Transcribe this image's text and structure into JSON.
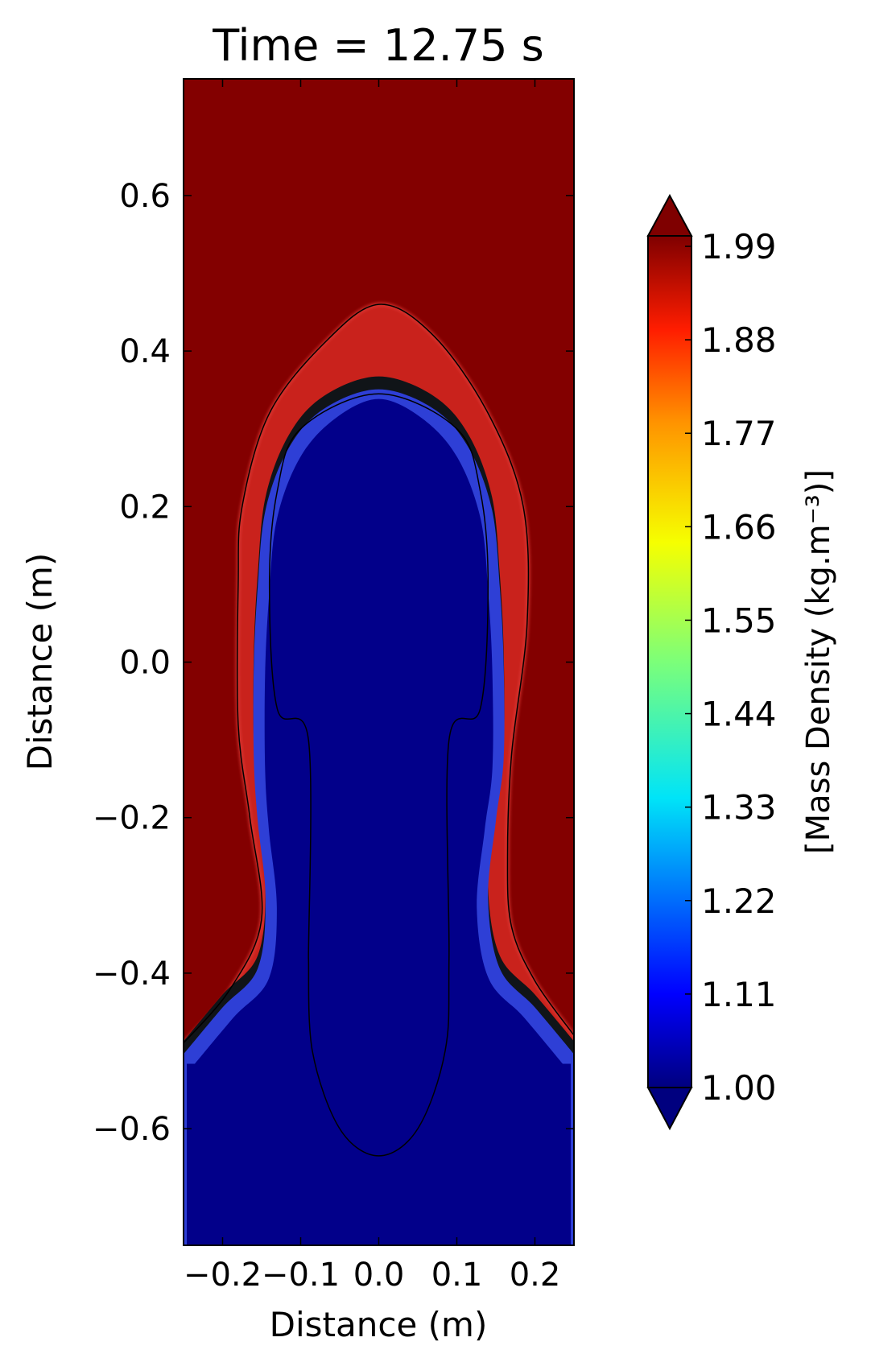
{
  "chart_data": {
    "type": "heatmap",
    "title": "Time = 12.75 s",
    "xlabel": "Distance (m)",
    "ylabel": "Distance (m)",
    "xlim": [
      -0.25,
      0.25
    ],
    "ylim": [
      -0.75,
      0.75
    ],
    "xticks": [
      -0.2,
      -0.1,
      0.0,
      0.1,
      0.2
    ],
    "xtick_labels": [
      "−0.2",
      "−0.1",
      "0.0",
      "0.1",
      "0.2"
    ],
    "yticks": [
      0.6,
      0.4,
      0.2,
      0.0,
      -0.2,
      -0.4,
      -0.6
    ],
    "ytick_labels": [
      "0.6",
      "0.4",
      "0.2",
      "0.0",
      "−0.2",
      "−0.4",
      "−0.6"
    ],
    "colorbar": {
      "label": "[Mass Density (kg.m⁻³)]",
      "min": 1.0,
      "max": 1.99,
      "colormap": "jet",
      "extend": "both",
      "ticks": [
        1.99,
        1.88,
        1.77,
        1.66,
        1.55,
        1.44,
        1.33,
        1.22,
        1.11,
        1.0
      ],
      "tick_labels": [
        "1.99",
        "1.88",
        "1.77",
        "1.66",
        "1.55",
        "1.44",
        "1.33",
        "1.22",
        "1.11",
        "1.00"
      ]
    },
    "field": {
      "background_high_value": 1.99,
      "low_value": 1.0,
      "interface_contour": [
        [
          -0.25,
          -0.5
        ],
        [
          -0.2,
          -0.44
        ],
        [
          -0.155,
          -0.39
        ],
        [
          -0.145,
          -0.3
        ],
        [
          -0.155,
          -0.2
        ],
        [
          -0.16,
          -0.12
        ],
        [
          -0.16,
          0.0
        ],
        [
          -0.155,
          0.1
        ],
        [
          -0.145,
          0.2
        ],
        [
          -0.115,
          0.28
        ],
        [
          -0.07,
          0.33
        ],
        [
          0.0,
          0.355
        ],
        [
          0.07,
          0.33
        ],
        [
          0.115,
          0.28
        ],
        [
          0.145,
          0.2
        ],
        [
          0.155,
          0.1
        ],
        [
          0.16,
          0.0
        ],
        [
          0.16,
          -0.12
        ],
        [
          0.15,
          -0.2
        ],
        [
          0.14,
          -0.3
        ],
        [
          0.155,
          -0.39
        ],
        [
          0.2,
          -0.44
        ],
        [
          0.25,
          -0.5
        ]
      ],
      "outer_contour": [
        [
          -0.25,
          -0.49
        ],
        [
          -0.19,
          -0.42
        ],
        [
          -0.15,
          -0.33
        ],
        [
          -0.165,
          -0.2
        ],
        [
          -0.18,
          -0.08
        ],
        [
          -0.18,
          0.1
        ],
        [
          -0.175,
          0.2
        ],
        [
          -0.14,
          0.32
        ],
        [
          -0.07,
          0.41
        ],
        [
          0.0,
          0.46
        ],
        [
          0.07,
          0.42
        ],
        [
          0.14,
          0.32
        ],
        [
          0.185,
          0.2
        ],
        [
          0.19,
          0.05
        ],
        [
          0.17,
          -0.12
        ],
        [
          0.165,
          -0.25
        ],
        [
          0.17,
          -0.34
        ],
        [
          0.2,
          -0.41
        ],
        [
          0.25,
          -0.48
        ]
      ],
      "inner_contour": [
        [
          -0.09,
          -0.38
        ],
        [
          -0.09,
          -0.1
        ],
        [
          -0.13,
          -0.06
        ],
        [
          -0.14,
          0.1
        ],
        [
          -0.13,
          0.22
        ],
        [
          -0.1,
          0.3
        ],
        [
          0.0,
          0.345
        ],
        [
          0.1,
          0.3
        ],
        [
          0.13,
          0.22
        ],
        [
          0.14,
          0.1
        ],
        [
          0.13,
          -0.06
        ],
        [
          0.09,
          -0.1
        ],
        [
          0.09,
          -0.38
        ],
        [
          0.085,
          -0.5
        ],
        [
          0.05,
          -0.6
        ],
        [
          0.0,
          -0.635
        ],
        [
          -0.05,
          -0.6
        ],
        [
          -0.085,
          -0.5
        ]
      ]
    }
  }
}
